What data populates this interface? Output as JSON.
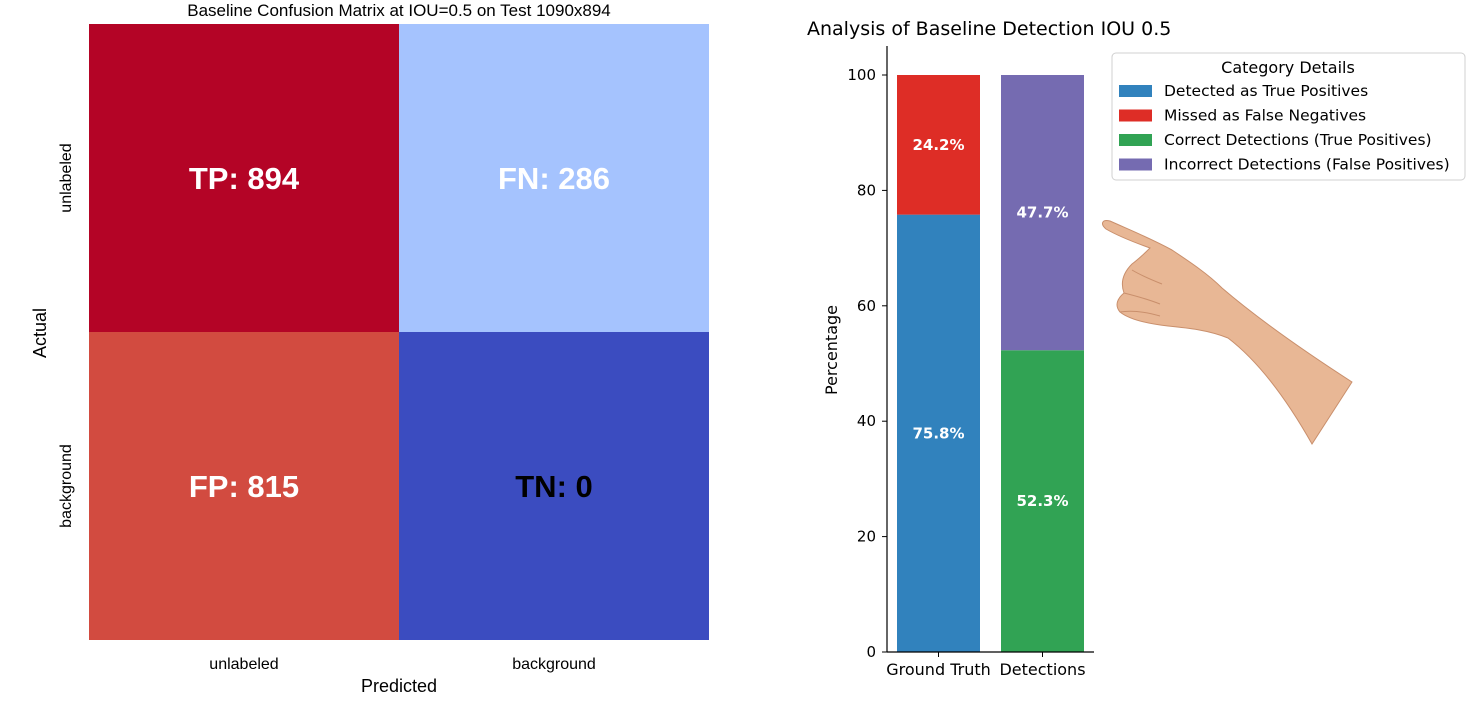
{
  "chart_data": [
    {
      "type": "heatmap",
      "title": "Baseline Confusion Matrix at IOU=0.5 on Test 1090x894",
      "xlabel": "Predicted",
      "ylabel": "Actual",
      "x_categories": [
        "unlabeled",
        "background"
      ],
      "y_categories": [
        "unlabeled",
        "background"
      ],
      "cells": [
        {
          "row": 0,
          "col": 0,
          "label": "TP: 894",
          "value": 894,
          "color": "#b40426",
          "text_color": "#ffffff"
        },
        {
          "row": 0,
          "col": 1,
          "label": "FN: 286",
          "value": 286,
          "color": "#a5c3fe",
          "text_color": "#ffffff"
        },
        {
          "row": 1,
          "col": 0,
          "label": "FP: 815",
          "value": 815,
          "color": "#d24b40",
          "text_color": "#ffffff"
        },
        {
          "row": 1,
          "col": 1,
          "label": "TN: 0",
          "value": 0,
          "color": "#3b4cc0",
          "text_color": "#000000"
        }
      ]
    },
    {
      "type": "bar",
      "stacked": true,
      "title": "Analysis of Baseline Detection IOU 0.5",
      "xlabel": "",
      "ylabel": "Percentage",
      "ylim": [
        0,
        105
      ],
      "yticks": [
        0,
        20,
        40,
        60,
        80,
        100
      ],
      "categories": [
        "Ground Truth",
        "Detections"
      ],
      "series": [
        {
          "name": "Detected as True Positives",
          "color": "#3182bd",
          "values": [
            75.8,
            0
          ],
          "labels": [
            "75.8%",
            ""
          ]
        },
        {
          "name": "Missed as False Negatives",
          "color": "#de2d26",
          "values": [
            24.2,
            0
          ],
          "labels": [
            "24.2%",
            ""
          ]
        },
        {
          "name": "Correct Detections (True Positives)",
          "color": "#31a354",
          "values": [
            0,
            52.3
          ],
          "labels": [
            "",
            "52.3%"
          ]
        },
        {
          "name": "Incorrect Detections (False Positives)",
          "color": "#756bb1",
          "values": [
            0,
            47.7
          ],
          "labels": [
            "",
            "47.7%"
          ]
        }
      ],
      "legend": {
        "title": "Category Details",
        "position": "right"
      }
    }
  ],
  "decoration": {
    "icon": "pointing-hand-icon",
    "skin_color": "#e8b795"
  }
}
